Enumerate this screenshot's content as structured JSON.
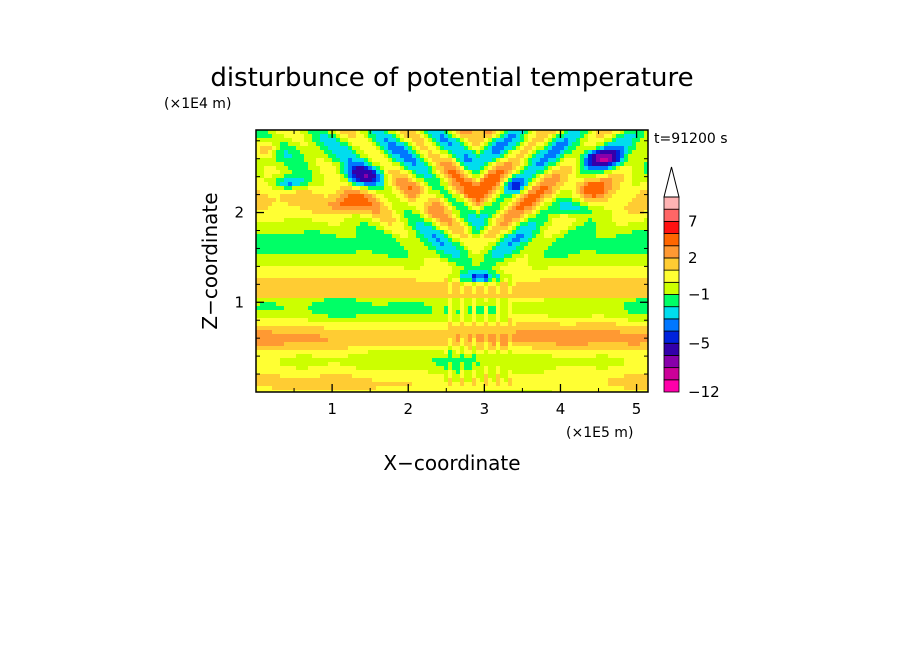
{
  "chart_data": {
    "type": "heatmap",
    "title": "disturbunce of potential temperature",
    "xlabel": "X−coordinate",
    "ylabel": "Z−coordinate",
    "x_unit": "(×1E5 m)",
    "y_unit": "(×1E4 m)",
    "time_label": "t=91200 s",
    "xlim": [
      0,
      5.15
    ],
    "ylim": [
      0,
      2.92
    ],
    "x_ticks": [
      {
        "value": 1,
        "label": "1"
      },
      {
        "value": 2,
        "label": "2"
      },
      {
        "value": 3,
        "label": "3"
      },
      {
        "value": 4,
        "label": "4"
      },
      {
        "value": 5,
        "label": "5"
      }
    ],
    "y_ticks": [
      {
        "value": 1,
        "label": "1"
      },
      {
        "value": 2,
        "label": "2"
      }
    ],
    "colorbar": {
      "levels": [
        -12,
        -10,
        -8,
        -7,
        -5,
        -4,
        -3,
        -2,
        -1,
        0,
        1,
        2,
        3,
        5,
        7,
        8,
        10
      ],
      "colors": [
        "#ff00aa",
        "#cc0099",
        "#8800aa",
        "#3300aa",
        "#0022dd",
        "#0077ff",
        "#00ddee",
        "#00ff66",
        "#ccff00",
        "#ffff33",
        "#ffcc33",
        "#ff9933",
        "#ff6600",
        "#ff1111",
        "#ff6666",
        "#ffb3b3"
      ],
      "tick_labels": [
        {
          "value": -12,
          "label": "−12"
        },
        {
          "value": -5,
          "label": "−5"
        },
        {
          "value": -1,
          "label": "−1"
        },
        {
          "value": 2,
          "label": "2"
        },
        {
          "value": 7,
          "label": "7"
        }
      ],
      "extend": "max"
    }
  }
}
